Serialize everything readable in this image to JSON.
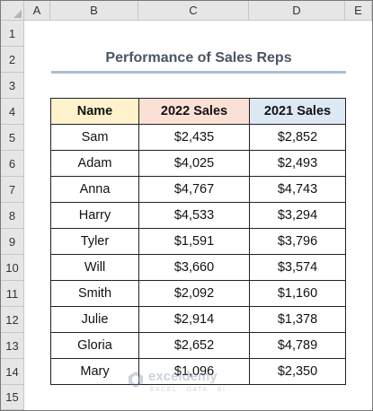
{
  "columns": [
    "A",
    "B",
    "C",
    "D",
    "E"
  ],
  "rows": [
    "1",
    "2",
    "3",
    "4",
    "5",
    "6",
    "7",
    "8",
    "9",
    "10",
    "11",
    "12",
    "13",
    "14",
    "15"
  ],
  "title": "Performance of Sales Reps",
  "table": {
    "headers": {
      "name": "Name",
      "sales_2022": "2022 Sales",
      "sales_2021": "2021 Sales"
    },
    "records": [
      {
        "name": "Sam",
        "sales_2022": "$2,435",
        "sales_2021": "$2,852"
      },
      {
        "name": "Adam",
        "sales_2022": "$4,025",
        "sales_2021": "$2,493"
      },
      {
        "name": "Anna",
        "sales_2022": "$4,767",
        "sales_2021": "$4,743"
      },
      {
        "name": "Harry",
        "sales_2022": "$4,533",
        "sales_2021": "$3,294"
      },
      {
        "name": "Tyler",
        "sales_2022": "$1,591",
        "sales_2021": "$3,796"
      },
      {
        "name": "Will",
        "sales_2022": "$3,660",
        "sales_2021": "$3,574"
      },
      {
        "name": "Smith",
        "sales_2022": "$2,092",
        "sales_2021": "$1,160"
      },
      {
        "name": "Julie",
        "sales_2022": "$2,914",
        "sales_2021": "$1,378"
      },
      {
        "name": "Gloria",
        "sales_2022": "$2,652",
        "sales_2021": "$4,789"
      },
      {
        "name": "Mary",
        "sales_2022": "$1,096",
        "sales_2021": "$2,350"
      }
    ]
  },
  "watermark": {
    "name": "exceldemy",
    "tagline": "EXCEL · DATA · BI"
  },
  "colors": {
    "header_name": "#fff2cc",
    "header_2022": "#fbe0d6",
    "header_2021": "#dde8f5",
    "title_underline": "#a9bfd3"
  }
}
